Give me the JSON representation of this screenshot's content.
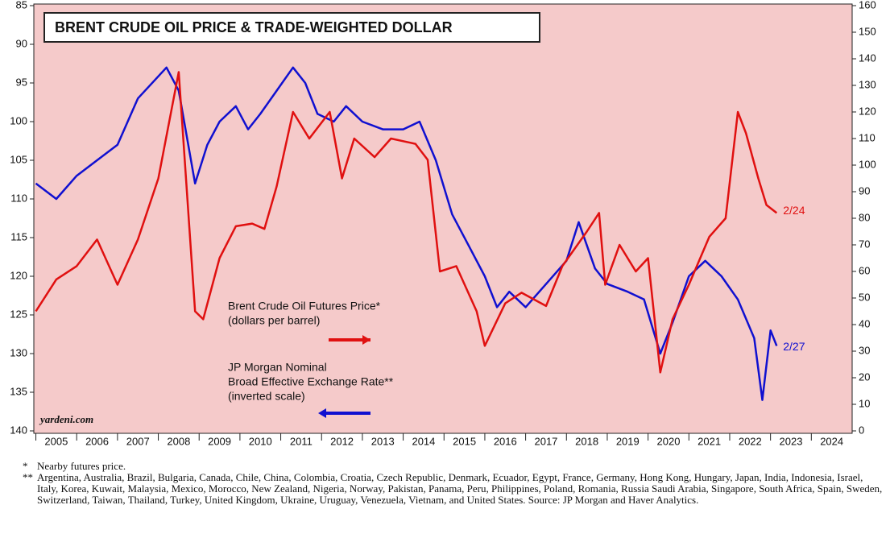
{
  "chart_data": {
    "type": "line",
    "title": "BRENT CRUDE OIL PRICE & TRADE-WEIGHTED DOLLAR",
    "xlim": [
      2004.95,
      2025.0
    ],
    "xticks": [
      {
        "value": 2005.5,
        "label": "2005"
      },
      {
        "value": 2006.5,
        "label": "2006"
      },
      {
        "value": 2007.5,
        "label": "2007"
      },
      {
        "value": 2008.5,
        "label": "2008"
      },
      {
        "value": 2009.5,
        "label": "2009"
      },
      {
        "value": 2010.5,
        "label": "2010"
      },
      {
        "value": 2011.5,
        "label": "2011"
      },
      {
        "value": 2012.5,
        "label": "2012"
      },
      {
        "value": 2013.5,
        "label": "2013"
      },
      {
        "value": 2014.5,
        "label": "2014"
      },
      {
        "value": 2015.5,
        "label": "2015"
      },
      {
        "value": 2016.5,
        "label": "2016"
      },
      {
        "value": 2017.5,
        "label": "2017"
      },
      {
        "value": 2018.5,
        "label": "2018"
      },
      {
        "value": 2019.5,
        "label": "2019"
      },
      {
        "value": 2020.5,
        "label": "2020"
      },
      {
        "value": 2021.5,
        "label": "2021"
      },
      {
        "value": 2022.5,
        "label": "2022"
      },
      {
        "value": 2023.5,
        "label": "2023"
      },
      {
        "value": 2024.5,
        "label": "2024"
      }
    ],
    "ylim": [
      140,
      85
    ],
    "yticks": [
      85,
      90,
      95,
      100,
      105,
      110,
      115,
      120,
      125,
      130,
      135,
      140
    ],
    "y2lim": [
      0,
      160
    ],
    "y2ticks": [
      0,
      10,
      20,
      30,
      40,
      50,
      60,
      70,
      80,
      90,
      100,
      110,
      120,
      130,
      140,
      150,
      160
    ],
    "series": [
      {
        "name": "JP Morgan Nominal Broad Effective Exchange Rate** (inverted scale)",
        "color": "#1010d0",
        "axis": "y",
        "x": [
          2005,
          2005.5,
          2006,
          2006.5,
          2007,
          2007.5,
          2008.2,
          2008.5,
          2008.9,
          2009.2,
          2009.5,
          2009.9,
          2010.2,
          2010.5,
          2010.9,
          2011.3,
          2011.6,
          2011.9,
          2012.3,
          2012.6,
          2013,
          2013.5,
          2014,
          2014.4,
          2014.8,
          2015.2,
          2015.6,
          2016,
          2016.3,
          2016.6,
          2017,
          2017.5,
          2018,
          2018.3,
          2018.7,
          2019,
          2019.5,
          2019.9,
          2020.3,
          2020.6,
          2021,
          2021.4,
          2021.8,
          2022.2,
          2022.6,
          2022.8,
          2023,
          2023.15
        ],
        "values": [
          108,
          110,
          107,
          105,
          103,
          97,
          93,
          96,
          108,
          103,
          100,
          98,
          101,
          99,
          96,
          93,
          95,
          99,
          100,
          98,
          100,
          101,
          101,
          100,
          105,
          112,
          116,
          120,
          124,
          122,
          124,
          121,
          118,
          113,
          119,
          121,
          122,
          123,
          130,
          126,
          120,
          118,
          120,
          123,
          128,
          136,
          127,
          129
        ]
      },
      {
        "name": "Brent Crude Oil Futures Price* (dollars per barrel)",
        "color": "#e01010",
        "axis": "y2",
        "x": [
          2005,
          2005.5,
          2006,
          2006.5,
          2007,
          2007.5,
          2008,
          2008.5,
          2008.9,
          2009.1,
          2009.5,
          2009.9,
          2010.3,
          2010.6,
          2010.9,
          2011.3,
          2011.7,
          2012.2,
          2012.5,
          2012.8,
          2013.3,
          2013.7,
          2014.3,
          2014.6,
          2014.9,
          2015.3,
          2015.8,
          2016,
          2016.5,
          2016.9,
          2017.5,
          2017.9,
          2018.5,
          2018.8,
          2018.95,
          2019.3,
          2019.7,
          2020,
          2020.3,
          2020.6,
          2021,
          2021.5,
          2021.9,
          2022.2,
          2022.4,
          2022.7,
          2022.9,
          2023.15
        ],
        "values": [
          45,
          57,
          62,
          72,
          55,
          72,
          95,
          135,
          45,
          42,
          65,
          77,
          78,
          76,
          92,
          120,
          110,
          120,
          95,
          110,
          103,
          110,
          108,
          102,
          60,
          62,
          45,
          32,
          48,
          52,
          47,
          62,
          75,
          82,
          55,
          70,
          60,
          65,
          22,
          42,
          55,
          73,
          80,
          120,
          112,
          95,
          85,
          82
        ]
      }
    ],
    "annotations": [
      "2/24",
      "2/27",
      "Brent Crude Oil Futures Price*",
      "(dollars per barrel)",
      "JP Morgan Nominal",
      "Broad Effective Exchange Rate**",
      "(inverted scale)",
      "yardeni.com"
    ],
    "notes": [
      {
        "mark": "*",
        "text": "Nearby futures price."
      },
      {
        "mark": "**",
        "text": "Argentina, Australia, Brazil, Bulgaria, Canada, Chile, China, Colombia, Croatia, Czech Republic, Denmark, Ecuador, Egypt, France, Germany, Hong Kong, Hungary, Japan, India, Indonesia, Israel, Italy, Korea, Kuwait, Malaysia, Mexico, Morocco, New Zealand, Nigeria, Norway, Pakistan, Panama, Peru, Philippines, Poland, Romania, Russia Saudi Arabia, Singapore, South Africa, Spain, Sweden, Switzerland, Taiwan, Thailand, Turkey, United Kingdom, Ukraine, Uruguay, Venezuela, Vietnam, and United States. Source: JP Morgan and Haver Analytics."
      }
    ]
  }
}
